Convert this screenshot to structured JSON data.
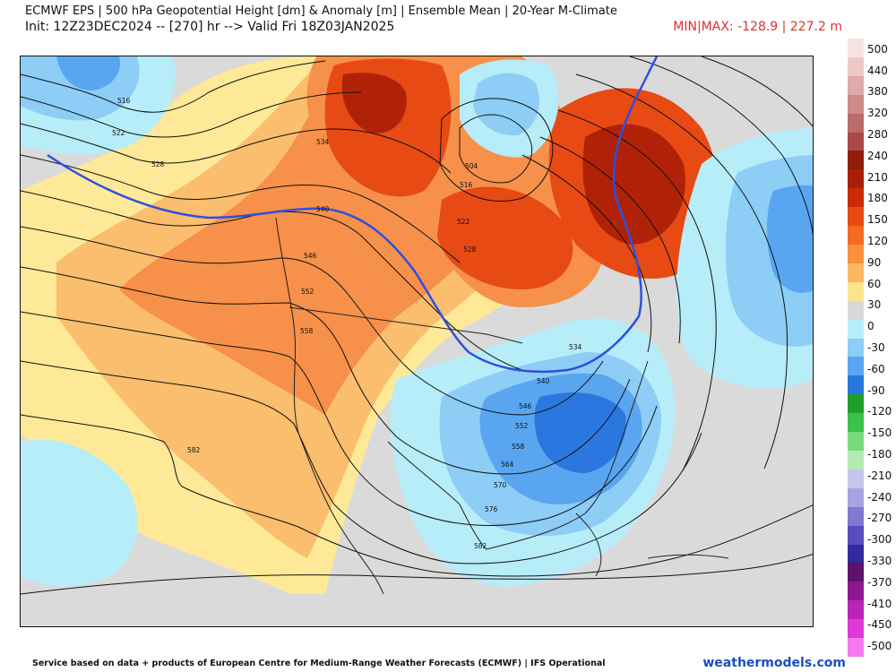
{
  "header": {
    "title_line1": "ECMWF EPS | 500 hPa Geopotential Height [dm] & Anomaly [m] | Ensemble Mean | 20-Year M-Climate",
    "title_line2": "Init: 12Z23DEC2024 -- [270] hr --> Valid Fri 18Z03JAN2025",
    "minmax": "MIN|MAX: -128.9 | 227.2 m"
  },
  "colorbar": {
    "labels": [
      "500",
      "440",
      "380",
      "320",
      "280",
      "240",
      "210",
      "180",
      "150",
      "120",
      "90",
      "60",
      "30",
      "0",
      "-30",
      "-60",
      "-90",
      "-120",
      "-150",
      "-180",
      "-210",
      "-240",
      "-270",
      "-300",
      "-330",
      "-370",
      "-410",
      "-450",
      "-500"
    ],
    "colors": [
      "#f6e4e4",
      "#ecc9c9",
      "#dfa9a9",
      "#cf8a8a",
      "#bc6a6a",
      "#a84848",
      "#8e1d0a",
      "#a81f05",
      "#cc2a08",
      "#e84a14",
      "#f36b21",
      "#f8913a",
      "#fbb864",
      "#fce38d",
      "#d8d8d8",
      "#b7ecf9",
      "#8dcdf6",
      "#5aa5ef",
      "#2a77e0",
      "#1e9e2a",
      "#3cc24a",
      "#79da7d",
      "#b3eab1",
      "#c9c5ea",
      "#a8a3e0",
      "#8178d0",
      "#5a4bbf",
      "#332a9e",
      "#5e1269",
      "#8c1a8e",
      "#b825b6",
      "#de3ad6",
      "#f47bef"
    ]
  },
  "map": {
    "contour_labels": [
      "516",
      "522",
      "528",
      "534",
      "540",
      "546",
      "552",
      "558",
      "582",
      "504",
      "516",
      "522",
      "528",
      "534",
      "540",
      "546",
      "552",
      "558",
      "564",
      "570",
      "576",
      "582"
    ],
    "anomaly_colors": {
      "strong_pos": "#b02208",
      "pos": "#e84a14",
      "mid_pos": "#f6904a",
      "weak_pos": "#fbbd6e",
      "faint_pos": "#fde998",
      "neutral": "#dadada",
      "weak_neg": "#b7ecf9",
      "neg": "#8dcdf6",
      "mid_neg": "#5aa5ef",
      "strong_neg": "#2a77e0"
    },
    "highlight_contour_color": "#2e4fe0"
  },
  "footer": {
    "credit": "Service based on data + products of European Centre for Medium-Range Weather Forecasts (ECMWF) | IFS Operational",
    "brand": "weathermodels.com"
  }
}
